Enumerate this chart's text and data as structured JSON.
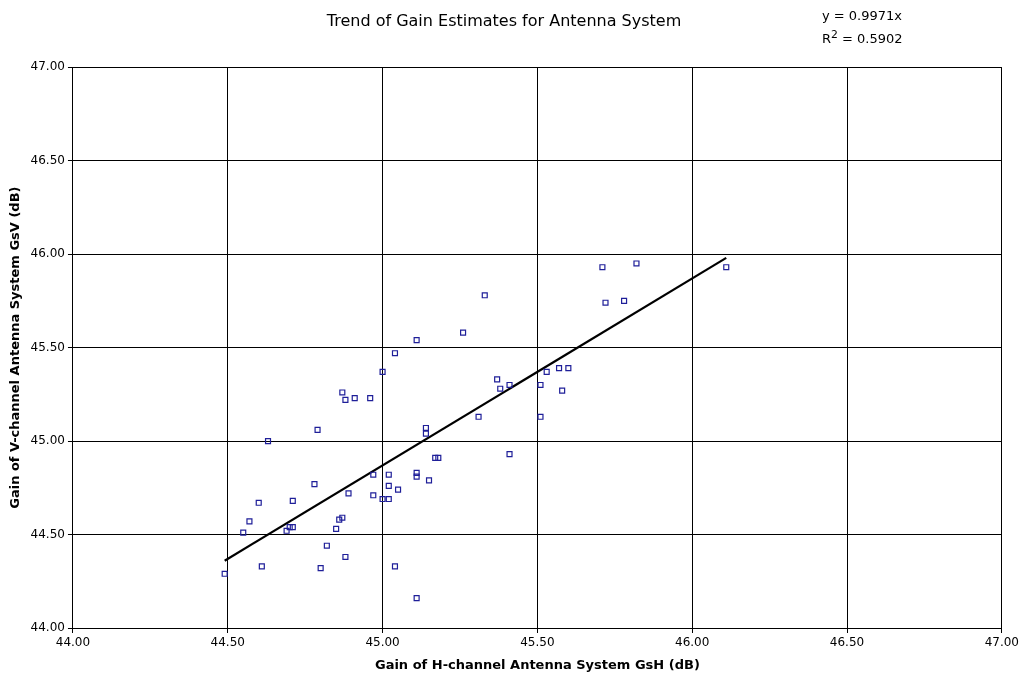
{
  "chart_data": {
    "type": "scatter",
    "title": "Trend of Gain Estimates for Antenna System",
    "xlabel": "Gain of H-channel Antenna System GsH (dB)",
    "ylabel": "Gain of V-channel Antenna System GsV (dB)",
    "annotations": [
      "y = 0.9971x",
      "R$^{2}$ = 0.5902"
    ],
    "xlim": [
      44,
      47
    ],
    "xticks": [
      {
        "value": 44,
        "label": "44.00"
      },
      {
        "value": 44.5,
        "label": "44.50"
      },
      {
        "value": 45,
        "label": "45.00"
      },
      {
        "value": 45.5,
        "label": "45.50"
      },
      {
        "value": 46,
        "label": "46.00"
      },
      {
        "value": 46.5,
        "label": "46.50"
      },
      {
        "value": 47,
        "label": "47.00"
      }
    ],
    "ylim": [
      44,
      47
    ],
    "yticks": [
      {
        "value": 44,
        "label": "44.00"
      },
      {
        "value": 44.5,
        "label": "44.50"
      },
      {
        "value": 45,
        "label": "45.00"
      },
      {
        "value": 45.5,
        "label": "45.50"
      },
      {
        "value": 46,
        "label": "46.00"
      },
      {
        "value": 46.5,
        "label": "46.50"
      },
      {
        "value": 47,
        "label": "47.00"
      }
    ],
    "grid": true,
    "legend": false,
    "marker": "square",
    "series": [
      {
        "color": "#1f1f99",
        "x": [
          44.49,
          44.55,
          44.57,
          44.6,
          44.61,
          44.63,
          44.69,
          44.7,
          44.71,
          44.71,
          44.78,
          44.79,
          44.8,
          44.82,
          44.85,
          44.86,
          44.87,
          44.87,
          44.88,
          44.88,
          44.89,
          44.91,
          44.96,
          44.97,
          44.97,
          45.0,
          45.0,
          45.02,
          45.02,
          45.02,
          45.04,
          45.04,
          45.05,
          45.11,
          45.11,
          45.11,
          45.11,
          45.14,
          45.14,
          45.15,
          45.17,
          45.18,
          45.26,
          45.31,
          45.33,
          45.37,
          45.38,
          45.41,
          45.41,
          45.51,
          45.51,
          45.53,
          45.57,
          45.58,
          45.6,
          45.71,
          45.72,
          45.78,
          45.82,
          46.11
        ],
        "values": [
          44.29,
          44.51,
          44.57,
          44.67,
          44.33,
          45.0,
          44.52,
          44.54,
          44.68,
          44.54,
          44.77,
          45.06,
          44.32,
          44.44,
          44.53,
          44.58,
          44.59,
          45.26,
          45.22,
          44.38,
          44.72,
          45.23,
          45.23,
          44.82,
          44.71,
          45.37,
          44.69,
          44.82,
          44.76,
          44.69,
          45.47,
          44.33,
          44.74,
          45.54,
          44.83,
          44.81,
          44.16,
          45.07,
          45.04,
          44.79,
          44.91,
          44.91,
          45.58,
          45.13,
          45.78,
          45.33,
          45.28,
          45.3,
          44.93,
          45.3,
          45.13,
          45.37,
          45.39,
          45.27,
          45.39,
          45.93,
          45.74,
          45.75,
          45.95,
          45.93
        ]
      },
      {
        "type": "line",
        "marker": "none",
        "color": "#000000",
        "x": [
          44.49,
          46.11
        ],
        "values": [
          44.36,
          45.98
        ]
      }
    ]
  }
}
